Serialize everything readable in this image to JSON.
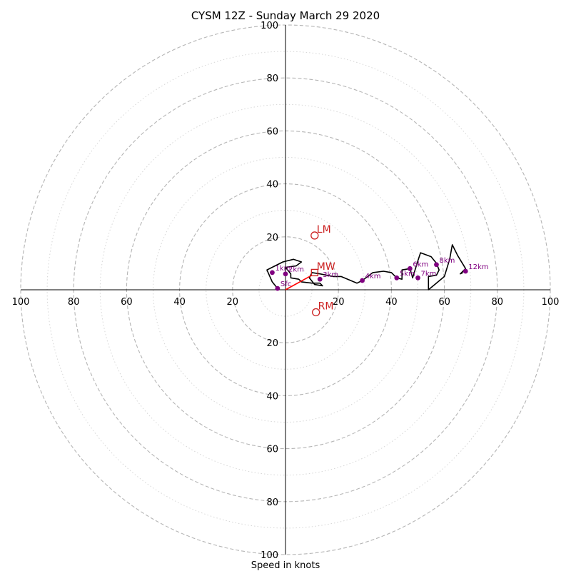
{
  "chart_data": {
    "type": "hodograph",
    "title": "CYSM 12Z - Sunday March 29 2020",
    "xlabel": "Speed in knots",
    "range": 100,
    "major_rings": [
      20,
      40,
      60,
      80,
      100
    ],
    "minor_rings": [
      10,
      30,
      50,
      70,
      90
    ],
    "axis_ticks": {
      "right": [
        "20",
        "40",
        "60",
        "80",
        "100"
      ],
      "left": [
        "100",
        "80",
        "60",
        "40",
        "20"
      ],
      "top": [
        "20",
        "40",
        "60",
        "80",
        "100"
      ],
      "bottom": [
        "20",
        "40",
        "60",
        "80",
        "100"
      ]
    },
    "trace": [
      [
        -3,
        0.5
      ],
      [
        -5,
        3
      ],
      [
        -7,
        7.5
      ],
      [
        -5,
        8.5
      ],
      [
        -1,
        10.5
      ],
      [
        3,
        11.5
      ],
      [
        6,
        10.5
      ],
      [
        4,
        9
      ],
      [
        0,
        8.5
      ],
      [
        2,
        6
      ],
      [
        2,
        4.5
      ],
      [
        5,
        4
      ],
      [
        6,
        3
      ],
      [
        10,
        2.5
      ],
      [
        13,
        2.5
      ],
      [
        14,
        1.5
      ],
      [
        11,
        2
      ],
      [
        9,
        4.5
      ],
      [
        10,
        6.5
      ],
      [
        13,
        6
      ],
      [
        18,
        5
      ],
      [
        21,
        5
      ],
      [
        27,
        2.5
      ],
      [
        29,
        3.5
      ],
      [
        33,
        6.5
      ],
      [
        37,
        7
      ],
      [
        40,
        6.5
      ],
      [
        42,
        4.5
      ],
      [
        44,
        4
      ],
      [
        44,
        7.5
      ],
      [
        47,
        8
      ],
      [
        48,
        4.5
      ],
      [
        50,
        11
      ],
      [
        51,
        14
      ],
      [
        55,
        12.5
      ],
      [
        57,
        10
      ],
      [
        58,
        7.5
      ],
      [
        57,
        5.5
      ],
      [
        54,
        5
      ],
      [
        54,
        0
      ],
      [
        60,
        5
      ],
      [
        62,
        11.5
      ],
      [
        63,
        17
      ],
      [
        65,
        13
      ],
      [
        68,
        8
      ],
      [
        66,
        6
      ],
      [
        67,
        6.5
      ]
    ],
    "height_points": [
      {
        "label": "Sfc",
        "u": -3,
        "v": 0.5
      },
      {
        "label": "1km",
        "u": -5,
        "v": 6.5
      },
      {
        "label": "2km",
        "u": 0,
        "v": 6
      },
      {
        "label": "3km",
        "u": 13,
        "v": 4
      },
      {
        "label": "4km",
        "u": 29,
        "v": 3.5
      },
      {
        "label": "5km",
        "u": 42,
        "v": 4.5
      },
      {
        "label": "6km",
        "u": 47,
        "v": 8
      },
      {
        "label": "7km",
        "u": 50,
        "v": 4.5
      },
      {
        "label": "8km",
        "u": 57,
        "v": 9.5
      },
      {
        "label": "12km",
        "u": 68,
        "v": 7
      }
    ],
    "motions": [
      {
        "label": "LM",
        "u": 11,
        "v": 20.5,
        "marker": "circle"
      },
      {
        "label": "MW",
        "u": 11,
        "v": 6.5,
        "marker": "square"
      },
      {
        "label": "RM",
        "u": 11.5,
        "v": -8.5,
        "marker": "circle"
      }
    ],
    "shear_vector": {
      "from": [
        0,
        0
      ],
      "to": [
        10,
        5.5
      ]
    },
    "colors": {
      "trace": "#000000",
      "height_points": "#800080",
      "motion": "#cc2222",
      "shear_vector": "#ff0000",
      "rings": "#b5b5b5",
      "axes": "#000000"
    }
  }
}
